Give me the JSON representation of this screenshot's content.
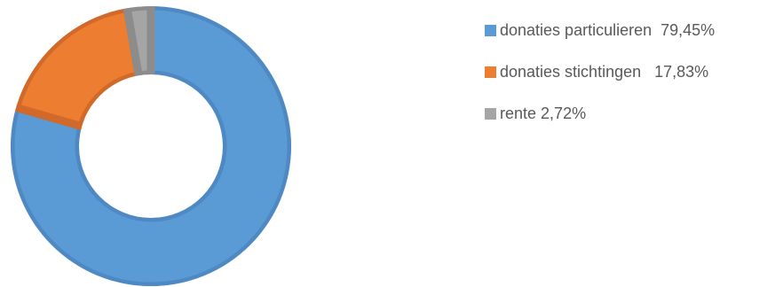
{
  "chart_data": {
    "type": "pie",
    "style": "donut",
    "title": "",
    "legend_position": "right",
    "series": [
      {
        "name": "donaties particulieren",
        "value": 79.45,
        "label": "79,45%",
        "color": "#5b9bd5",
        "edge": "#4f89c4"
      },
      {
        "name": "donaties stichtingen",
        "value": 17.83,
        "label": "17,83%",
        "color": "#ed7d31",
        "edge": "#d0692a"
      },
      {
        "name": "rente",
        "value": 2.72,
        "label": "2,72%",
        "color": "#a5a5a5",
        "edge": "#8c8c8c"
      }
    ]
  }
}
